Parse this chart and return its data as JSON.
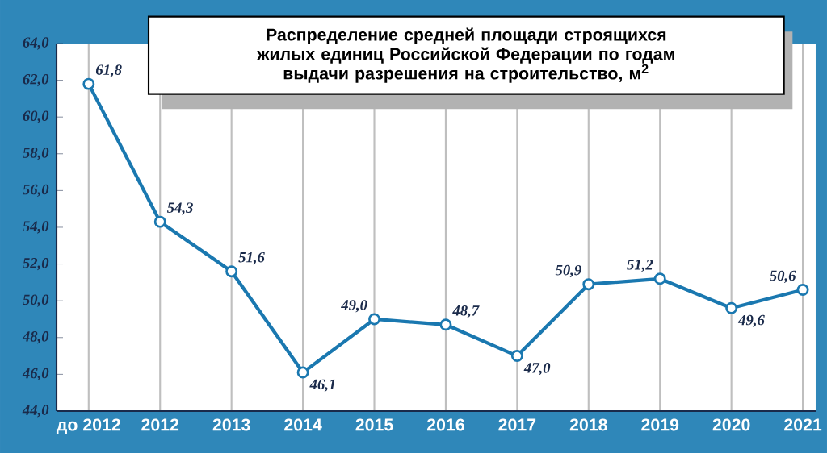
{
  "chart_data": {
    "type": "line",
    "title": "Распределение средней площади строящихся жилых единиц Российской Федерации по годам выдачи разрешения на строительство, м$^{2}$",
    "categories": [
      "до 2012",
      "2012",
      "2013",
      "2014",
      "2015",
      "2016",
      "2017",
      "2018",
      "2019",
      "2020",
      "2021"
    ],
    "values": [
      61.8,
      54.3,
      51.6,
      46.1,
      49.0,
      48.7,
      47.0,
      50.9,
      51.2,
      49.6,
      50.6
    ],
    "value_labels": [
      "61,8",
      "54,3",
      "51,6",
      "46,1",
      "49,0",
      "48,7",
      "47,0",
      "50,9",
      "51,2",
      "49,6",
      "50,6"
    ],
    "color": "#1a78b0",
    "marker": "circle",
    "line_style": "solid",
    "grid": "x",
    "ylim": [
      44,
      64
    ],
    "yticks": [
      {
        "value": 44,
        "label": "44,0"
      },
      {
        "value": 46,
        "label": "46,0"
      },
      {
        "value": 48,
        "label": "48,0"
      },
      {
        "value": 50,
        "label": "50,0"
      },
      {
        "value": 52,
        "label": "52,0"
      },
      {
        "value": 54,
        "label": "54,0"
      },
      {
        "value": 56,
        "label": "56,0"
      },
      {
        "value": 58,
        "label": "58,0"
      },
      {
        "value": 60,
        "label": "60,0"
      },
      {
        "value": 62,
        "label": "62,0"
      },
      {
        "value": 64,
        "label": "64,0"
      }
    ]
  }
}
